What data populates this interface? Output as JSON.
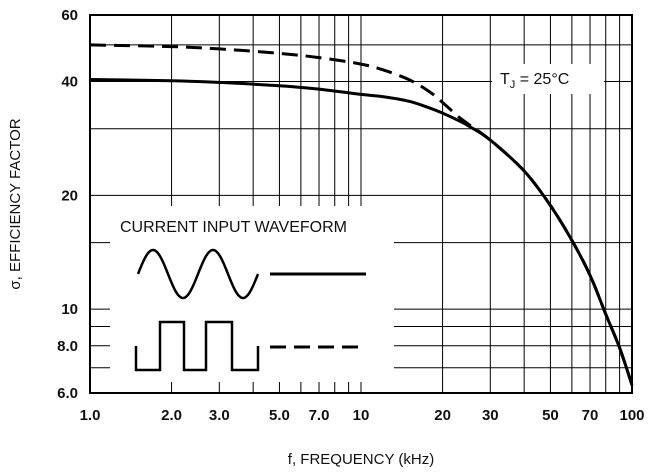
{
  "chart_data": {
    "type": "line",
    "xscale": "log",
    "yscale": "log",
    "xlim": [
      1.0,
      100
    ],
    "ylim": [
      6.0,
      60
    ],
    "grid": true,
    "xlabel": "f, FREQUENCY (kHz)",
    "ylabel": "σ, EFFICIENCY FACTOR",
    "x_ticks": [
      {
        "value": 1.0,
        "label": "1.0"
      },
      {
        "value": 2.0,
        "label": "2.0"
      },
      {
        "value": 3.0,
        "label": "3.0"
      },
      {
        "value": 5.0,
        "label": "5.0"
      },
      {
        "value": 7.0,
        "label": "7.0"
      },
      {
        "value": 10,
        "label": "10"
      },
      {
        "value": 20,
        "label": "20"
      },
      {
        "value": 30,
        "label": "30"
      },
      {
        "value": 50,
        "label": "50"
      },
      {
        "value": 70,
        "label": "70"
      },
      {
        "value": 100,
        "label": "100"
      }
    ],
    "y_ticks": [
      {
        "value": 6.0,
        "label": "6.0"
      },
      {
        "value": 8.0,
        "label": "8.0"
      },
      {
        "value": 10,
        "label": "10"
      },
      {
        "value": 20,
        "label": "20"
      },
      {
        "value": 40,
        "label": "40"
      },
      {
        "value": 60,
        "label": "60"
      }
    ],
    "x_grid": [
      1,
      2,
      3,
      4,
      5,
      6,
      7,
      8,
      9,
      10,
      20,
      30,
      40,
      50,
      60,
      70,
      80,
      90,
      100
    ],
    "y_grid": [
      6,
      7,
      8,
      9,
      10,
      15,
      20,
      30,
      40,
      50,
      60
    ],
    "series": [
      {
        "style": "solid",
        "legend_waveform": "sine",
        "x": [
          1.0,
          2.0,
          3.0,
          5.0,
          7.0,
          10,
          12,
          15,
          18,
          20,
          23,
          25,
          30,
          40,
          50,
          60,
          70,
          80,
          90,
          100
        ],
        "y": [
          40.5,
          40.2,
          39.8,
          39,
          38.2,
          37,
          36.5,
          35.5,
          34,
          33,
          31.5,
          30.5,
          28,
          23.2,
          18.8,
          15.2,
          12.3,
          9.7,
          7.9,
          6.3
        ]
      },
      {
        "style": "dashed",
        "legend_waveform": "square",
        "x": [
          1.0,
          2.0,
          3.0,
          5.0,
          7.0,
          10,
          12,
          15,
          18,
          20,
          23,
          25,
          30,
          40,
          50,
          60,
          70,
          80,
          90,
          100
        ],
        "y": [
          50,
          49.5,
          48.8,
          47.5,
          46.3,
          44.5,
          43,
          40.5,
          37.5,
          35.2,
          32.2,
          30.8,
          28,
          23.2,
          18.8,
          15.2,
          12.3,
          9.7,
          7.9,
          6.3
        ]
      }
    ],
    "legend": {
      "title": "CURRENT INPUT WAVEFORM",
      "placement": "lower-left"
    },
    "annotation": {
      "main": "T",
      "sub": "J",
      "rest": " = 25°C"
    }
  }
}
